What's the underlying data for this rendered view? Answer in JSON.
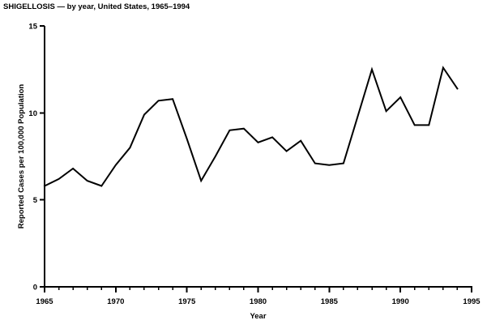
{
  "page": {
    "background_color": "#ffffff",
    "foreground_color": "#000000"
  },
  "chart_data": {
    "type": "line",
    "title": "SHIGELLOSIS — by year, United States, 1965–1994",
    "xlabel": "Year",
    "ylabel": "Reported Cases per 100,000 Population",
    "x": [
      1965,
      1966,
      1967,
      1968,
      1969,
      1970,
      1971,
      1972,
      1973,
      1974,
      1975,
      1976,
      1977,
      1978,
      1979,
      1980,
      1981,
      1982,
      1983,
      1984,
      1985,
      1986,
      1987,
      1988,
      1989,
      1990,
      1991,
      1992,
      1993,
      1994
    ],
    "series": [
      {
        "name": "Reported cases per 100,000 population",
        "values": [
          5.8,
          6.2,
          6.8,
          6.1,
          5.8,
          7.0,
          8.0,
          9.9,
          10.7,
          10.8,
          8.5,
          6.1,
          7.5,
          9.0,
          9.1,
          8.3,
          8.6,
          7.8,
          8.4,
          7.1,
          7.0,
          7.1,
          9.8,
          12.5,
          10.1,
          10.9,
          9.3,
          9.3,
          12.6,
          11.4
        ]
      }
    ],
    "xlim": [
      1965,
      1995
    ],
    "ylim": [
      0,
      15
    ],
    "xticks": [
      1965,
      1970,
      1975,
      1980,
      1985,
      1990,
      1995
    ],
    "xtick_labels": [
      "1965",
      "1970",
      "1975",
      "1980",
      "1985",
      "1990",
      "1995"
    ],
    "minor_xtick_interval": 1,
    "yticks": [
      0,
      5,
      10,
      15
    ],
    "ytick_labels": [
      "0",
      "5",
      "10",
      "15"
    ],
    "grid": false,
    "legend": "none",
    "line_color": "#000000",
    "markers": "none"
  }
}
